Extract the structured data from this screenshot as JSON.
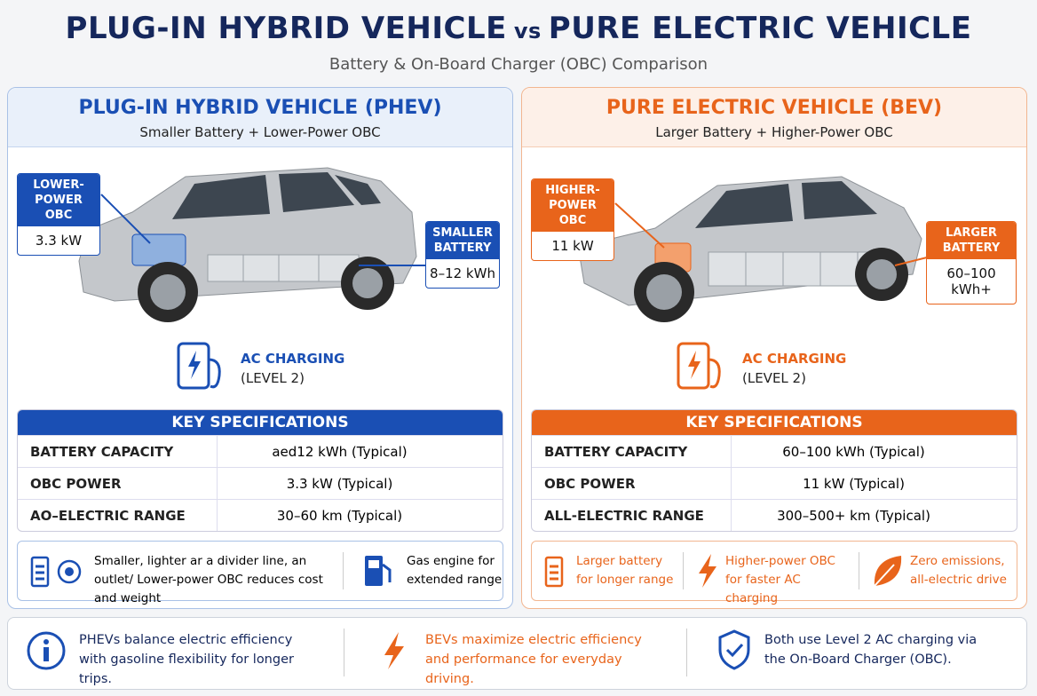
{
  "header": {
    "title_left": "PLUG-IN HYBRID VEHICLE",
    "title_vs": "vs",
    "title_right": "PURE ELECTRIC VEHICLE",
    "subtitle": "Battery & On-Board Charger (OBC) Comparison"
  },
  "panels": [
    {
      "title": "PLUG-IN HYBRID VEHICLE (PHEV)",
      "subtitle": "Smaller Battery + Lower-Power OBC",
      "obc_callout": {
        "label": "LOWER-POWER OBC",
        "value": "3.3 kW"
      },
      "battery_callout": {
        "label": "SMALLER BATTERY",
        "value": "8–12 kWh"
      },
      "charging": {
        "label": "AC CHARGING",
        "level": "(LEVEL 2)"
      },
      "specs": {
        "title": "KEY SPECIFICATIONS",
        "rows": [
          [
            "BATTERY CAPACITY",
            "aed12 kWh (Typical)"
          ],
          [
            "OBC POWER",
            "3.3 kW (Typical)"
          ],
          [
            "AO–ELECTRIC RANGE",
            "30–60 km (Typical)"
          ]
        ]
      },
      "features": [
        "Smaller, lighter ar a divider line, an outlet/ Lower-power OBC reduces cost and weight",
        "Gas engine for extended range"
      ]
    },
    {
      "title": "PURE ELECTRIC VEHICLE (BEV)",
      "subtitle": "Larger Battery + Higher-Power OBC",
      "obc_callout": {
        "label": "HIGHER-POWER OBC",
        "value": "11 kW"
      },
      "battery_callout": {
        "label": "LARGER BATTERY",
        "value": "60–100 kWh+"
      },
      "charging": {
        "label": "AC CHARGING",
        "level": "(LEVEL 2)"
      },
      "specs": {
        "title": "KEY SPECIFICATIONS",
        "rows": [
          [
            "BATTERY CAPACITY",
            "60–100 kWh (Typical)"
          ],
          [
            "OBC POWER",
            "11 kW (Typical)"
          ],
          [
            "ALL-ELECTRIC RANGE",
            "300–500+ km (Typical)"
          ]
        ]
      },
      "features": [
        "Larger battery for longer range",
        "Higher-power OBC for faster AC charging",
        "Zero emissions, all-electric drive"
      ]
    }
  ],
  "footer": [
    "PHEVs balance electric efficiency with gasoline flexibility for longer trips.",
    "BEVs maximize electric efficiency and performance for everyday driving.",
    "Both use Level 2 AC charging via the On-Board Charger (OBC)."
  ]
}
